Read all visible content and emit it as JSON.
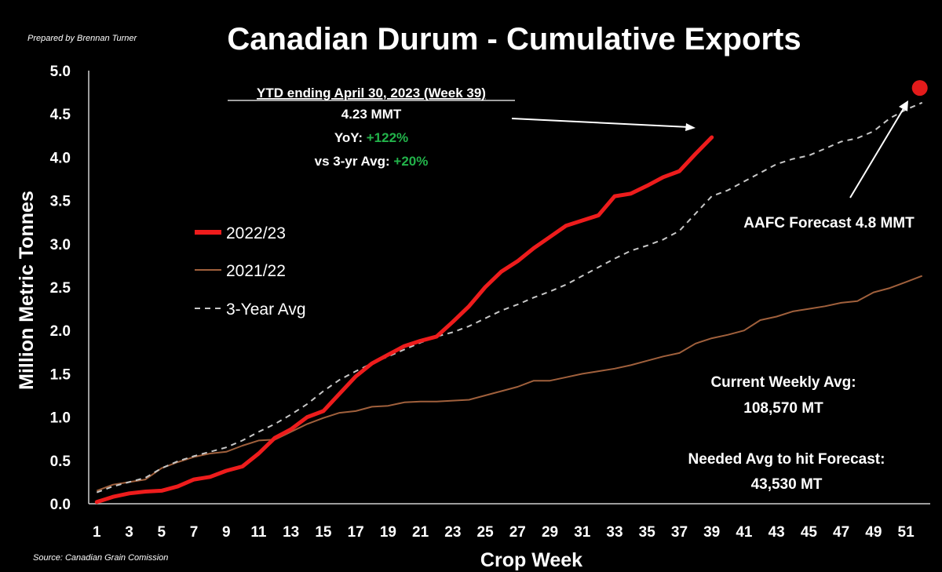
{
  "credit": "Prepared by Brennan Turner",
  "source": "Source: Canadian Grain Comission",
  "annotations": {
    "ytd_title": "YTD ending April 30, 2023 (Week 39)",
    "ytd_value": "4.23 MMT",
    "yoy_label": "YoY:",
    "yoy_value": "+122%",
    "avg_label": "vs 3-yr Avg:",
    "avg_value": "+20%",
    "forecast": "AAFC Forecast 4.8 MMT",
    "weekly_avg_label": "Current Weekly Avg:",
    "weekly_avg_value": "108,570 MT",
    "needed_label": "Needed Avg to hit Forecast:",
    "needed_value": "43,530 MT"
  },
  "colors": {
    "background": "#000000",
    "series_2022_23": "#ee1c1c",
    "series_2021_22": "#a0603c",
    "series_3yr": "#c8c8c8",
    "positive": "#22b34a",
    "forecast_marker": "#e31b1b"
  },
  "chart_data": {
    "type": "line",
    "title": "Canadian Durum - Cumulative Exports",
    "xlabel": "Crop Week",
    "ylabel": "Million Metric Tonnes",
    "xlim": [
      0.5,
      52.5
    ],
    "ylim": [
      0,
      5
    ],
    "x_ticks": [
      "1",
      "3",
      "5",
      "7",
      "9",
      "11",
      "13",
      "15",
      "17",
      "19",
      "21",
      "23",
      "25",
      "27",
      "29",
      "31",
      "33",
      "35",
      "37",
      "39",
      "41",
      "43",
      "45",
      "47",
      "49",
      "51"
    ],
    "y_ticks": [
      "0.0",
      "0.5",
      "1.0",
      "1.5",
      "2.0",
      "2.5",
      "3.0",
      "3.5",
      "4.0",
      "4.5",
      "5.0"
    ],
    "legend_position": "left-center",
    "grid": false,
    "series": [
      {
        "name": "2022/23",
        "style": "thick-solid",
        "x": [
          1,
          2,
          3,
          4,
          5,
          6,
          7,
          8,
          9,
          10,
          11,
          12,
          13,
          14,
          15,
          16,
          17,
          18,
          19,
          20,
          21,
          22,
          23,
          24,
          25,
          26,
          27,
          28,
          29,
          30,
          31,
          32,
          33,
          34,
          35,
          36,
          37,
          38,
          39
        ],
        "values": [
          0.02,
          0.08,
          0.12,
          0.14,
          0.15,
          0.2,
          0.28,
          0.31,
          0.38,
          0.43,
          0.58,
          0.76,
          0.86,
          1.0,
          1.07,
          1.27,
          1.47,
          1.62,
          1.72,
          1.82,
          1.88,
          1.93,
          2.1,
          2.28,
          2.5,
          2.68,
          2.8,
          2.95,
          3.08,
          3.21,
          3.27,
          3.33,
          3.55,
          3.58,
          3.67,
          3.77,
          3.84,
          4.04,
          4.23
        ]
      },
      {
        "name": "2021/22",
        "style": "thin-solid",
        "x": [
          1,
          2,
          3,
          4,
          5,
          6,
          7,
          8,
          9,
          10,
          11,
          12,
          13,
          14,
          15,
          16,
          17,
          18,
          19,
          20,
          21,
          22,
          23,
          24,
          25,
          26,
          27,
          28,
          29,
          30,
          31,
          32,
          33,
          34,
          35,
          36,
          37,
          38,
          39,
          40,
          41,
          42,
          43,
          44,
          45,
          46,
          47,
          48,
          49,
          50,
          51,
          52
        ],
        "values": [
          0.15,
          0.22,
          0.25,
          0.28,
          0.41,
          0.48,
          0.54,
          0.58,
          0.6,
          0.67,
          0.73,
          0.74,
          0.83,
          0.92,
          0.99,
          1.05,
          1.07,
          1.12,
          1.13,
          1.17,
          1.18,
          1.18,
          1.19,
          1.2,
          1.25,
          1.3,
          1.35,
          1.42,
          1.42,
          1.46,
          1.5,
          1.53,
          1.56,
          1.6,
          1.65,
          1.7,
          1.74,
          1.85,
          1.91,
          1.95,
          2.0,
          2.12,
          2.16,
          2.22,
          2.25,
          2.28,
          2.32,
          2.34,
          2.44,
          2.49,
          2.56,
          2.63
        ]
      },
      {
        "name": "3-Year Avg",
        "style": "dashed",
        "x": [
          1,
          2,
          3,
          4,
          5,
          6,
          7,
          8,
          9,
          10,
          11,
          12,
          13,
          14,
          15,
          16,
          17,
          18,
          19,
          20,
          21,
          22,
          23,
          24,
          25,
          26,
          27,
          28,
          29,
          30,
          31,
          32,
          33,
          34,
          35,
          36,
          37,
          38,
          39,
          40,
          41,
          42,
          43,
          44,
          45,
          46,
          47,
          48,
          49,
          50,
          51,
          52
        ],
        "values": [
          0.13,
          0.2,
          0.25,
          0.3,
          0.41,
          0.49,
          0.55,
          0.6,
          0.65,
          0.73,
          0.83,
          0.92,
          1.03,
          1.15,
          1.3,
          1.43,
          1.53,
          1.62,
          1.7,
          1.78,
          1.86,
          1.93,
          1.98,
          2.05,
          2.14,
          2.23,
          2.3,
          2.38,
          2.45,
          2.53,
          2.63,
          2.73,
          2.83,
          2.92,
          2.98,
          3.05,
          3.15,
          3.35,
          3.55,
          3.62,
          3.72,
          3.82,
          3.92,
          3.98,
          4.02,
          4.1,
          4.18,
          4.22,
          4.3,
          4.45,
          4.55,
          4.63
        ]
      }
    ],
    "forecast_point": {
      "x": 52,
      "y": 4.8
    }
  }
}
